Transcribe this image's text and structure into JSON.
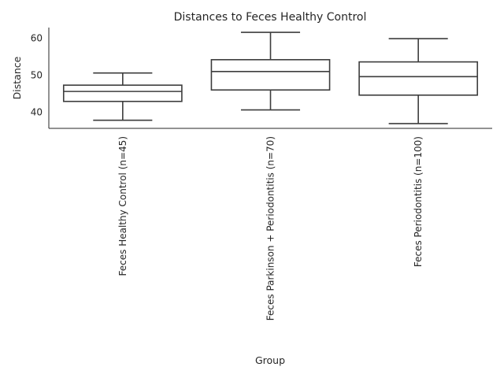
{
  "chart_data": {
    "type": "box",
    "title": "Distances to Feces Healthy Control",
    "xlabel": "Group",
    "ylabel": "Distance",
    "ylim": [
      35.6,
      62.9
    ],
    "yticks": [
      40,
      50,
      60
    ],
    "grid": false,
    "categories": [
      "Feces Healthy Control (n=45)",
      "Feces Parkinson + Periodontitis (n=70)",
      "Feces Periodontitis (n=100)"
    ],
    "boxes": [
      {
        "whisker_low": 37.8,
        "q1": 42.9,
        "median": 45.6,
        "q3": 47.3,
        "whisker_high": 50.6
      },
      {
        "whisker_low": 40.6,
        "q1": 46.0,
        "median": 51.0,
        "q3": 54.2,
        "whisker_high": 61.6
      },
      {
        "whisker_low": 36.9,
        "q1": 44.6,
        "median": 49.6,
        "q3": 53.6,
        "whisker_high": 59.9
      }
    ]
  }
}
